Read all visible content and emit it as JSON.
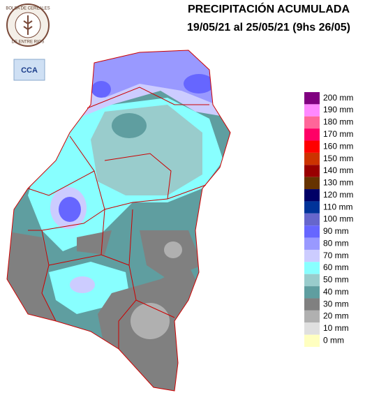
{
  "header": {
    "title": "PRECIPITACIÓN ACUMULADA",
    "subtitle": "19/05/21 al 25/05/21 (9hs 26/05)"
  },
  "logos": {
    "bolsa_top": "BOLSA DE CEREALES",
    "bolsa_bottom": "DE ENTRE RIOS",
    "cca": "CCA"
  },
  "legend": {
    "items": [
      {
        "label": "200 mm",
        "color": "#800080"
      },
      {
        "label": "190 mm",
        "color": "#ff88ff"
      },
      {
        "label": "180 mm",
        "color": "#ff6699"
      },
      {
        "label": "170 mm",
        "color": "#ff0066"
      },
      {
        "label": "160 mm",
        "color": "#ff0000"
      },
      {
        "label": "150 mm",
        "color": "#cc3300"
      },
      {
        "label": "140 mm",
        "color": "#990000"
      },
      {
        "label": "130 mm",
        "color": "#663300"
      },
      {
        "label": "120 mm",
        "color": "#000066"
      },
      {
        "label": "110 mm",
        "color": "#003399"
      },
      {
        "label": "100 mm",
        "color": "#6666cc"
      },
      {
        "label": "90 mm",
        "color": "#6666ff"
      },
      {
        "label": "80 mm",
        "color": "#9999ff"
      },
      {
        "label": "70 mm",
        "color": "#ccccff"
      },
      {
        "label": "60 mm",
        "color": "#88ffff"
      },
      {
        "label": "50 mm",
        "color": "#99cccc"
      },
      {
        "label": "40 mm",
        "color": "#5f9ea0"
      },
      {
        "label": "30 mm",
        "color": "#808080"
      },
      {
        "label": "20 mm",
        "color": "#b0b0b0"
      },
      {
        "label": "10 mm",
        "color": "#e0e0e0"
      },
      {
        "label": "0 mm",
        "color": "#ffffc0"
      }
    ]
  }
}
